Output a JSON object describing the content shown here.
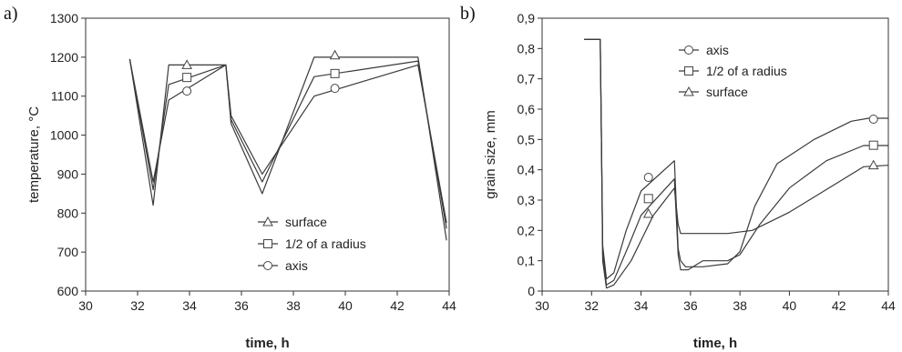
{
  "panels": [
    {
      "tag": "a)"
    },
    {
      "tag": "b)"
    }
  ],
  "chart_data": [
    {
      "type": "line",
      "title": "",
      "xlabel": "time, h",
      "ylabel": "temperature, °C",
      "xlim": [
        30,
        44
      ],
      "ylim": [
        600,
        1300
      ],
      "xticks": [
        30,
        32,
        34,
        36,
        38,
        40,
        42,
        44
      ],
      "yticks": [
        600,
        700,
        800,
        900,
        1000,
        1100,
        1200,
        1300
      ],
      "grid": false,
      "legend_position": "bottom-right",
      "series": [
        {
          "name": "surface",
          "marker": "triangle",
          "color": "#555555",
          "points": [
            [
              31.7,
              1195
            ],
            [
              32.6,
              820
            ],
            [
              33.2,
              1180
            ],
            [
              35.4,
              1180
            ],
            [
              35.6,
              1030
            ],
            [
              36.8,
              850
            ],
            [
              38.8,
              1200
            ],
            [
              42.8,
              1200
            ],
            [
              43.9,
              730
            ]
          ],
          "marker_points": [
            [
              33.9,
              1180
            ],
            [
              39.6,
              1205
            ]
          ]
        },
        {
          "name": "1/2 of a radius",
          "marker": "square",
          "color": "#555555",
          "points": [
            [
              31.7,
              1195
            ],
            [
              32.6,
              860
            ],
            [
              33.2,
              1130
            ],
            [
              35.4,
              1180
            ],
            [
              35.6,
              1040
            ],
            [
              36.8,
              880
            ],
            [
              38.8,
              1150
            ],
            [
              42.8,
              1190
            ],
            [
              43.9,
              760
            ]
          ],
          "marker_points": [
            [
              33.9,
              1148
            ],
            [
              39.6,
              1158
            ]
          ]
        },
        {
          "name": "axis",
          "marker": "circle",
          "color": "#555555",
          "points": [
            [
              31.7,
              1195
            ],
            [
              32.6,
              880
            ],
            [
              33.2,
              1090
            ],
            [
              35.4,
              1180
            ],
            [
              35.6,
              1050
            ],
            [
              36.8,
              900
            ],
            [
              38.8,
              1100
            ],
            [
              42.8,
              1180
            ],
            [
              43.9,
              775
            ]
          ],
          "marker_points": [
            [
              33.9,
              1113
            ],
            [
              39.6,
              1120
            ]
          ]
        }
      ]
    },
    {
      "type": "line",
      "title": "",
      "xlabel": "time, h",
      "ylabel": "grain size, mm",
      "xlim": [
        30,
        44
      ],
      "ylim": [
        0,
        0.9
      ],
      "xticks": [
        30,
        32,
        34,
        36,
        38,
        40,
        42,
        44
      ],
      "yticks": [
        "0",
        "0,1",
        "0,2",
        "0,3",
        "0,4",
        "0,5",
        "0,6",
        "0,7",
        "0,8",
        "0,9"
      ],
      "grid": false,
      "legend_position": "top-center",
      "series": [
        {
          "name": "axis",
          "marker": "circle",
          "color": "#555555",
          "points": [
            [
              31.7,
              0.83
            ],
            [
              32.35,
              0.83
            ],
            [
              32.4,
              0.5
            ],
            [
              32.45,
              0.15
            ],
            [
              32.6,
              0.04
            ],
            [
              32.9,
              0.06
            ],
            [
              33.4,
              0.2
            ],
            [
              34,
              0.33
            ],
            [
              35.35,
              0.43
            ],
            [
              35.5,
              0.14
            ],
            [
              35.6,
              0.1
            ],
            [
              35.8,
              0.08
            ],
            [
              36.5,
              0.08
            ],
            [
              37.5,
              0.09
            ],
            [
              38,
              0.13
            ],
            [
              38.6,
              0.28
            ],
            [
              39.5,
              0.42
            ],
            [
              41,
              0.5
            ],
            [
              42.5,
              0.56
            ],
            [
              43.2,
              0.57
            ],
            [
              44,
              0.57
            ]
          ],
          "marker_points": [
            [
              34.3,
              0.375
            ],
            [
              43.4,
              0.567
            ]
          ]
        },
        {
          "name": "1/2 of a radius",
          "marker": "square",
          "color": "#555555",
          "points": [
            [
              31.7,
              0.83
            ],
            [
              32.35,
              0.83
            ],
            [
              32.4,
              0.5
            ],
            [
              32.45,
              0.12
            ],
            [
              32.6,
              0.02
            ],
            [
              32.9,
              0.035
            ],
            [
              33.5,
              0.15
            ],
            [
              34,
              0.25
            ],
            [
              35.35,
              0.37
            ],
            [
              35.5,
              0.12
            ],
            [
              35.6,
              0.07
            ],
            [
              35.9,
              0.07
            ],
            [
              36.5,
              0.1
            ],
            [
              37.5,
              0.1
            ],
            [
              38,
              0.12
            ],
            [
              38.8,
              0.22
            ],
            [
              40,
              0.34
            ],
            [
              41.5,
              0.43
            ],
            [
              43,
              0.48
            ],
            [
              44,
              0.48
            ]
          ],
          "marker_points": [
            [
              34.3,
              0.305
            ],
            [
              43.4,
              0.481
            ]
          ]
        },
        {
          "name": "surface",
          "marker": "triangle",
          "color": "#555555",
          "points": [
            [
              31.7,
              0.83
            ],
            [
              32.35,
              0.83
            ],
            [
              32.4,
              0.5
            ],
            [
              32.45,
              0.1
            ],
            [
              32.6,
              0.01
            ],
            [
              32.9,
              0.02
            ],
            [
              33.6,
              0.1
            ],
            [
              34.5,
              0.25
            ],
            [
              35.35,
              0.34
            ],
            [
              35.5,
              0.22
            ],
            [
              35.6,
              0.19
            ],
            [
              37.5,
              0.19
            ],
            [
              38.5,
              0.2
            ],
            [
              40,
              0.26
            ],
            [
              42,
              0.36
            ],
            [
              43,
              0.41
            ],
            [
              44,
              0.415
            ]
          ],
          "marker_points": [
            [
              34.3,
              0.255
            ],
            [
              43.4,
              0.415
            ]
          ]
        }
      ]
    }
  ]
}
